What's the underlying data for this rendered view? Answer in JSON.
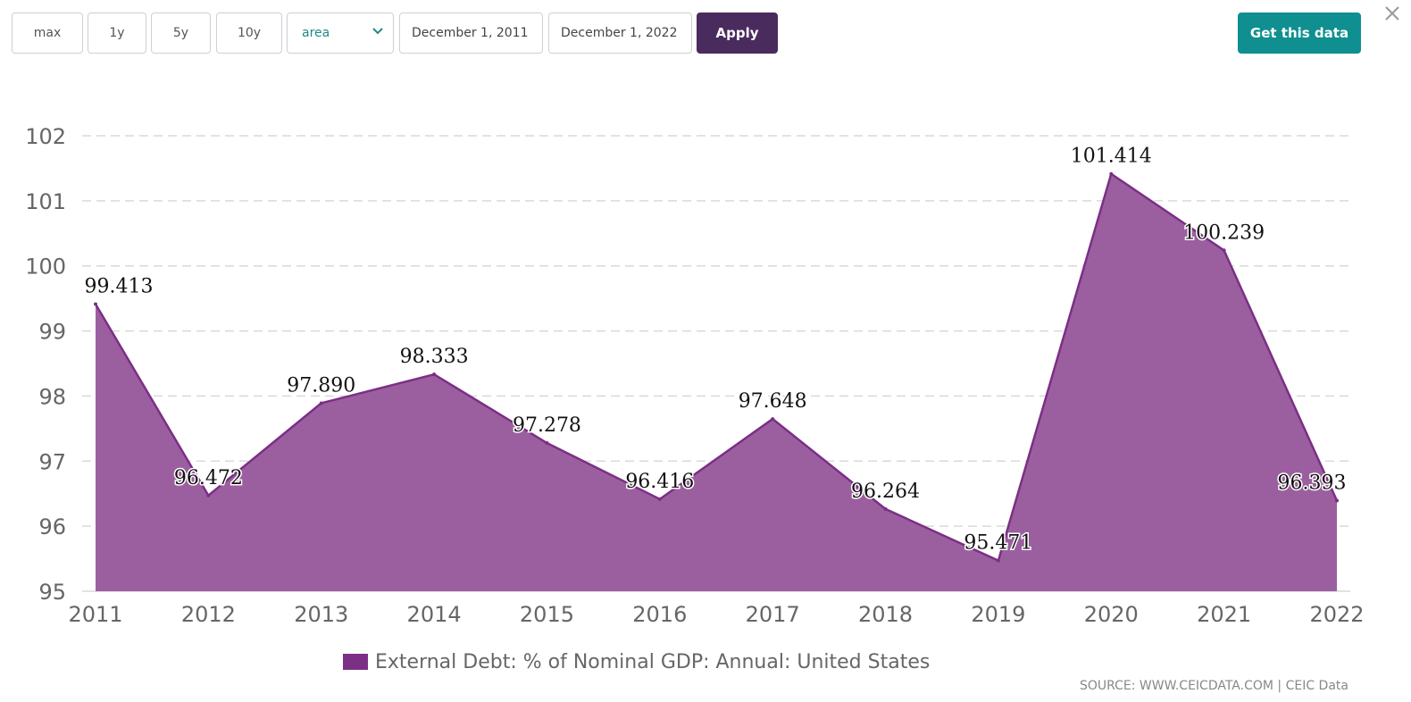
{
  "toolbar": {
    "range_buttons": [
      "max",
      "1y",
      "5y",
      "10y"
    ],
    "chart_type_selected": "area",
    "start_date": "December 1, 2011",
    "end_date": "December 1, 2022",
    "apply_label": "Apply",
    "get_data_label": "Get this data"
  },
  "colors": {
    "area_fill": "#9b5fa0",
    "area_line": "#7b2f85",
    "legend_swatch": "#7b2f85",
    "apply_bg": "#4a2b5e",
    "get_data_bg": "#0f8f8f"
  },
  "icons": {
    "select_chevron": "chevron-down-icon",
    "close": "close-icon"
  },
  "source_text": "SOURCE: WWW.CEICDATA.COM | CEIC Data",
  "chart_data": {
    "type": "area",
    "categories": [
      "2011",
      "2012",
      "2013",
      "2014",
      "2015",
      "2016",
      "2017",
      "2018",
      "2019",
      "2020",
      "2021",
      "2022"
    ],
    "series": [
      {
        "name": "External Debt: % of Nominal GDP: Annual: United States",
        "values": [
          99.413,
          96.472,
          97.89,
          98.333,
          97.278,
          96.416,
          97.648,
          96.264,
          95.471,
          101.414,
          100.239,
          96.393
        ],
        "labels": [
          "99.413",
          "96.472",
          "97.890",
          "98.333",
          "97.278",
          "96.416",
          "97.648",
          "96.264",
          "95.471",
          "101.414",
          "100.239",
          "96.393"
        ]
      }
    ],
    "ylim": [
      95,
      102
    ],
    "yticks": [
      "95",
      "96",
      "97",
      "98",
      "99",
      "100",
      "101",
      "102"
    ],
    "grid": true,
    "legend_position": "bottom"
  }
}
